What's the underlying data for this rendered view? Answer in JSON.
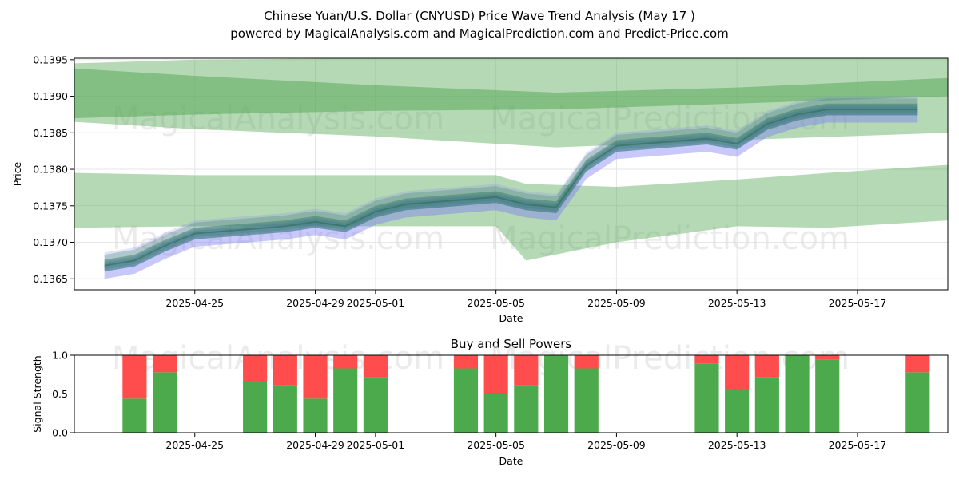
{
  "chart_data": [
    {
      "type": "area",
      "title": "Chinese Yuan/U.S. Dollar (CNYUSD) Price Wave Trend Analysis (May 17 )",
      "subtitle": "powered by MagicalAnalysis.com and MagicalPrediction.com and Predict-Price.com",
      "xlabel": "Date",
      "ylabel": "Price",
      "xlim": [
        "2025-04-21",
        "2025-05-20"
      ],
      "ylim": [
        0.13635,
        0.13952
      ],
      "x_ticks": [
        "2025-04-25",
        "2025-04-29",
        "2025-05-01",
        "2025-05-05",
        "2025-05-09",
        "2025-05-13",
        "2025-05-17"
      ],
      "y_ticks": [
        "0.1365",
        "0.1370",
        "0.1375",
        "0.1380",
        "0.1385",
        "0.1390",
        "0.1395"
      ],
      "grid": true,
      "watermarks": [
        "MagicalAnalysis.com",
        "MagicalPrediction.com"
      ],
      "price_series": {
        "x": [
          "2025-04-22",
          "2025-04-23",
          "2025-04-24",
          "2025-04-25",
          "2025-04-28",
          "2025-04-29",
          "2025-04-30",
          "2025-05-01",
          "2025-05-02",
          "2025-05-05",
          "2025-05-06",
          "2025-05-07",
          "2025-05-08",
          "2025-05-09",
          "2025-05-12",
          "2025-05-13",
          "2025-05-14",
          "2025-05-15",
          "2025-05-16",
          "2025-05-19"
        ],
        "y": [
          0.13668,
          0.13675,
          0.13695,
          0.13712,
          0.13722,
          0.13728,
          0.13722,
          0.13742,
          0.13752,
          0.13762,
          0.13752,
          0.13748,
          0.13805,
          0.13832,
          0.13842,
          0.13835,
          0.13862,
          0.13875,
          0.13882,
          0.13882
        ]
      },
      "green_bands": [
        {
          "x": [
            "2025-04-21",
            "2025-04-25",
            "2025-05-01",
            "2025-05-07",
            "2025-05-13",
            "2025-05-20"
          ],
          "upper": [
            0.13945,
            0.1395,
            0.13952,
            0.13952,
            0.13952,
            0.13952
          ],
          "lower": [
            0.13865,
            0.13855,
            0.13845,
            0.1383,
            0.1384,
            0.1385
          ]
        },
        {
          "x": [
            "2025-04-21",
            "2025-04-25",
            "2025-05-01",
            "2025-05-07",
            "2025-05-13",
            "2025-05-20"
          ],
          "upper": [
            0.13938,
            0.13928,
            0.13915,
            0.13905,
            0.13912,
            0.13925
          ],
          "lower": [
            0.1387,
            0.13875,
            0.1388,
            0.13882,
            0.1389,
            0.139
          ]
        },
        {
          "x": [
            "2025-04-21",
            "2025-04-25",
            "2025-05-01",
            "2025-05-05",
            "2025-05-06",
            "2025-05-09",
            "2025-05-13",
            "2025-05-16",
            "2025-05-20"
          ],
          "upper": [
            0.13795,
            0.13792,
            0.13792,
            0.13792,
            0.1378,
            0.13776,
            0.13786,
            0.13795,
            0.13806
          ],
          "lower": [
            0.1372,
            0.13722,
            0.13722,
            0.13722,
            0.13675,
            0.137,
            0.13722,
            0.1372,
            0.1373
          ]
        }
      ]
    },
    {
      "type": "bar",
      "title": "Buy and Sell Powers",
      "xlabel": "Date",
      "ylabel": "Signal Strength",
      "xlim": [
        "2025-04-21",
        "2025-05-20"
      ],
      "ylim": [
        0,
        1
      ],
      "x_ticks": [
        "2025-04-25",
        "2025-04-29",
        "2025-05-01",
        "2025-05-05",
        "2025-05-09",
        "2025-05-13",
        "2025-05-17"
      ],
      "y_ticks": [
        "0.0",
        "0.5",
        "1.0"
      ],
      "categories": [
        "2025-04-23",
        "2025-04-24",
        "2025-04-27",
        "2025-04-28",
        "2025-04-29",
        "2025-04-30",
        "2025-05-01",
        "2025-05-04",
        "2025-05-05",
        "2025-05-06",
        "2025-05-07",
        "2025-05-08",
        "2025-05-12",
        "2025-05-13",
        "2025-05-14",
        "2025-05-15",
        "2025-05-16",
        "2025-05-19"
      ],
      "series": [
        {
          "name": "Buy",
          "color": "#4caa4c",
          "values": [
            0.44,
            0.78,
            0.67,
            0.61,
            0.44,
            0.83,
            0.72,
            0.83,
            0.5,
            0.61,
            1.0,
            0.83,
            0.89,
            0.55,
            0.72,
            1.0,
            0.94,
            0.78
          ]
        },
        {
          "name": "Sell",
          "color": "#ff4c4c",
          "values": [
            0.56,
            0.22,
            0.33,
            0.39,
            0.56,
            0.17,
            0.28,
            0.17,
            0.5,
            0.39,
            0.0,
            0.17,
            0.11,
            0.45,
            0.28,
            0.0,
            0.06,
            0.22
          ]
        }
      ],
      "watermarks": [
        "MagicalAnalysis.com",
        "MagicalPrediction.com"
      ]
    }
  ]
}
